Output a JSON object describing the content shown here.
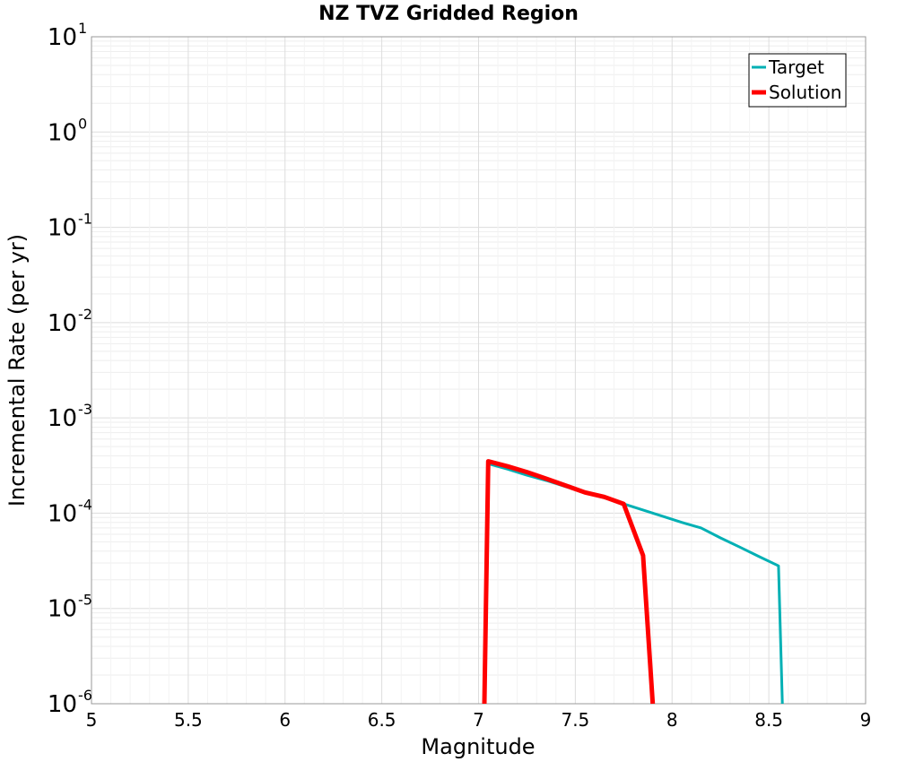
{
  "chart_data": {
    "type": "line",
    "title": "NZ TVZ Gridded Region",
    "xlabel": "Magnitude",
    "ylabel": "Incremental Rate (per yr)",
    "xlim": [
      5,
      9
    ],
    "ylim": [
      1e-06,
      10
    ],
    "yscale": "log",
    "grid": true,
    "legend_position": "top-right",
    "x_ticks": [
      "5",
      "5.5",
      "6",
      "6.5",
      "7",
      "7.5",
      "8",
      "8.5",
      "9"
    ],
    "y_ticks": [
      {
        "base": "10",
        "exp": "1"
      },
      {
        "base": "10",
        "exp": "0"
      },
      {
        "base": "10",
        "exp": "-1"
      },
      {
        "base": "10",
        "exp": "-2"
      },
      {
        "base": "10",
        "exp": "-3"
      },
      {
        "base": "10",
        "exp": "-4"
      },
      {
        "base": "10",
        "exp": "-5"
      },
      {
        "base": "10",
        "exp": "-6"
      }
    ],
    "series": [
      {
        "name": "Target",
        "color": "#00b0b4",
        "x": [
          7.05,
          7.15,
          7.25,
          7.35,
          7.45,
          7.55,
          7.65,
          7.75,
          7.85,
          7.95,
          8.05,
          8.15,
          8.25,
          8.35,
          8.45,
          8.55,
          8.57
        ],
        "y": [
          0.00033,
          0.00029,
          0.00025,
          0.00022,
          0.00019,
          0.000165,
          0.000145,
          0.000125,
          0.000108,
          9.3e-05,
          8e-05,
          7e-05,
          5.5e-05,
          4.4e-05,
          3.5e-05,
          2.8e-05,
          1e-06
        ]
      },
      {
        "name": "Solution",
        "color": "#ff0000",
        "x": [
          7.03,
          7.05,
          7.15,
          7.25,
          7.35,
          7.45,
          7.55,
          7.65,
          7.75,
          7.85,
          7.9
        ],
        "y": [
          1e-06,
          0.00035,
          0.00031,
          0.00027,
          0.00023,
          0.000195,
          0.000165,
          0.000148,
          0.000125,
          3.6e-05,
          1e-06
        ]
      }
    ]
  }
}
